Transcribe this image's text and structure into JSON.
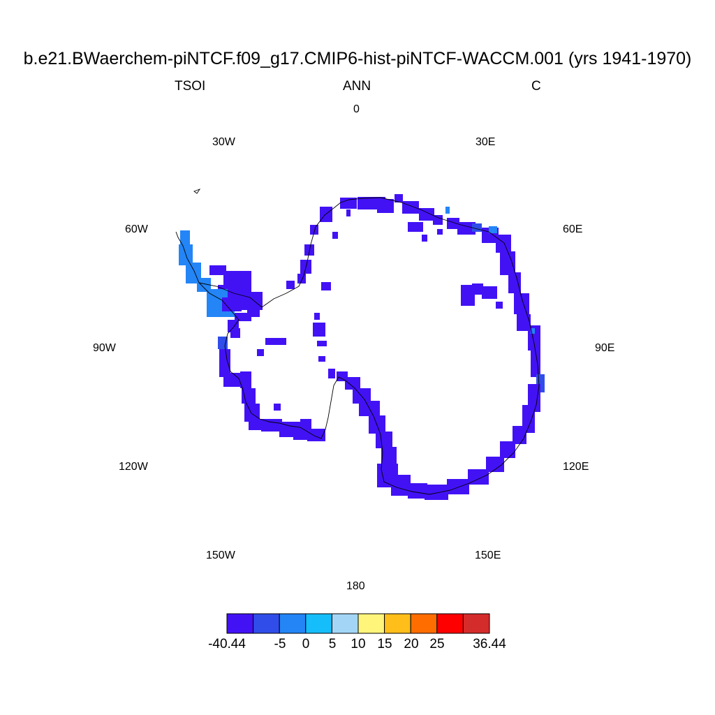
{
  "title": "b.e21.BWaerchem-piNTCF.f09_g17.CMIP6-hist-piNTCF-WACCM.001 (yrs 1941-1970)",
  "left_label": "TSOI",
  "center_label": "ANN",
  "right_label": "C",
  "longitude_labels": {
    "lon_0": "0",
    "lon_30e": "30E",
    "lon_60e": "60E",
    "lon_90e": "90E",
    "lon_120e": "120E",
    "lon_150e": "150E",
    "lon_180": "180",
    "lon_150w": "150W",
    "lon_120w": "120W",
    "lon_90w": "90W",
    "lon_60w": "60W",
    "lon_30w": "30W"
  },
  "colorbar": {
    "colors": [
      "#4212f5",
      "#304de9",
      "#2385f6",
      "#15bdfa",
      "#a3d6f6",
      "#fff57b",
      "#ffbe19",
      "#ff6d00",
      "#ff0000",
      "#d42b2b"
    ],
    "labels": [
      "-40.44",
      "-5",
      "0",
      "5",
      "10",
      "15",
      "20",
      "25",
      "36.44"
    ]
  },
  "map_colors": {
    "dominant": "#4212f5",
    "secondary": "#2385f6",
    "tertiary": "#304de9",
    "coastline": "#000000"
  }
}
